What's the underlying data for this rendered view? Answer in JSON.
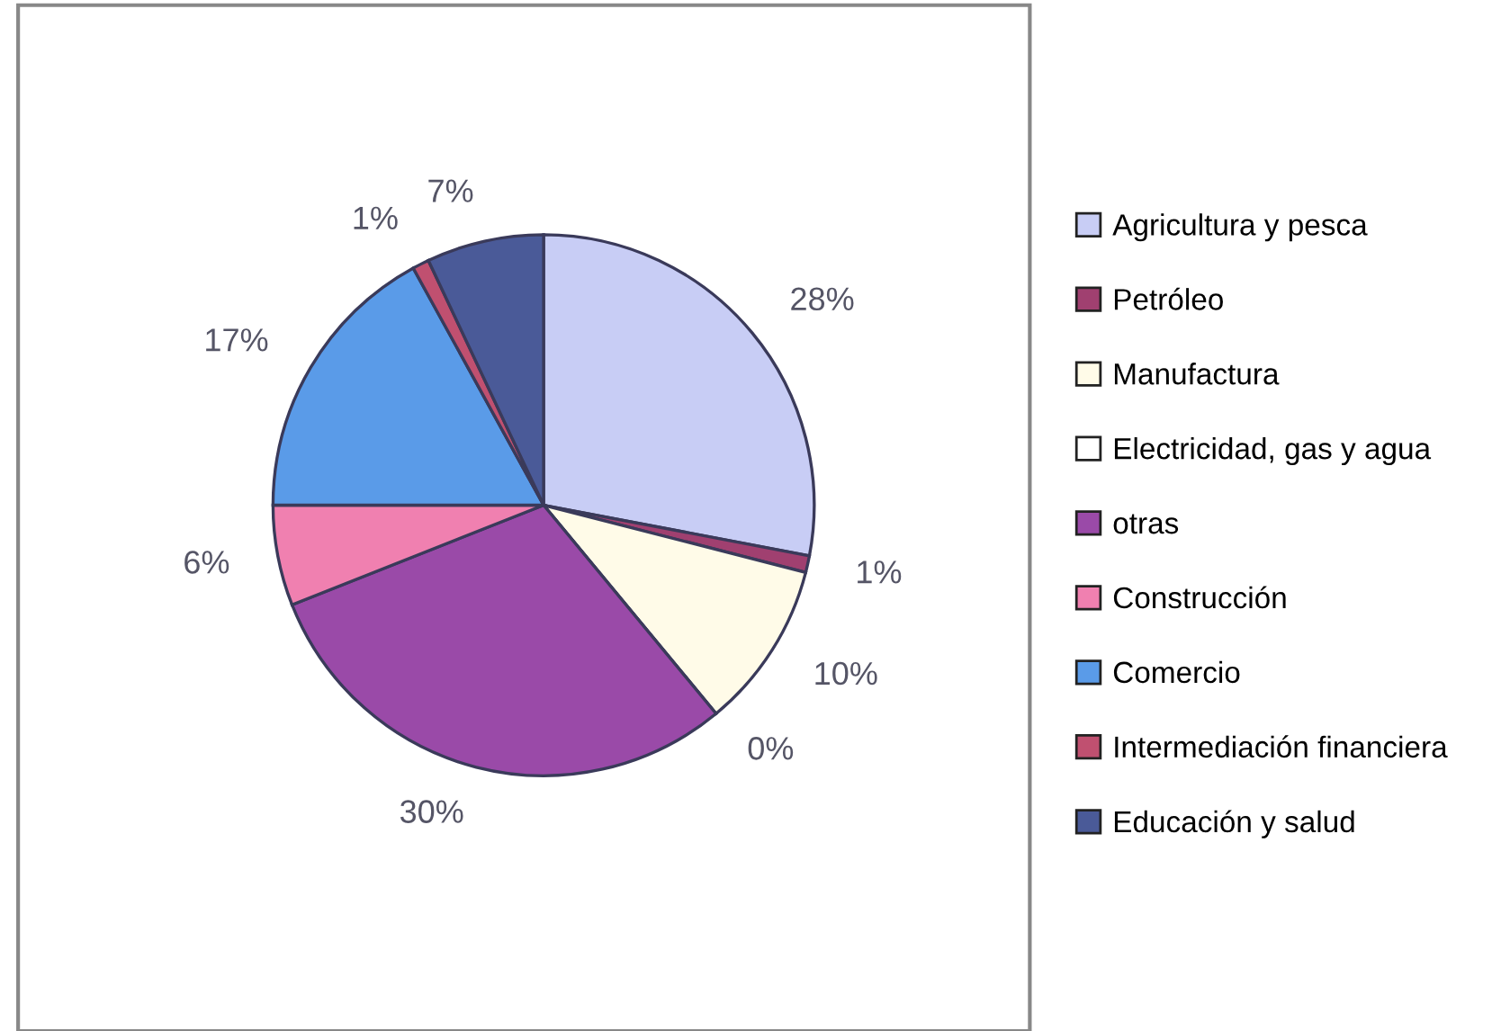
{
  "chart_data": {
    "type": "pie",
    "categories": [
      "Agricultura y pesca",
      "Petróleo",
      "Manufactura",
      "Electricidad, gas y agua",
      "otras",
      "Construcción",
      "Comercio",
      "Intermediación financiera",
      "Educación y salud"
    ],
    "values": [
      28,
      1,
      10,
      0,
      30,
      6,
      17,
      1,
      7
    ],
    "value_labels": [
      "28%",
      "1%",
      "10%",
      "0%",
      "30%",
      "6%",
      "17%",
      "1%",
      "7%"
    ],
    "colors": [
      "#c8cdf5",
      "#a04070",
      "#fffbe8",
      "#ffffff",
      "#9a4aa8",
      "#f080b0",
      "#5a9be8",
      "#c05070",
      "#4a5a98"
    ],
    "legend": "right"
  }
}
